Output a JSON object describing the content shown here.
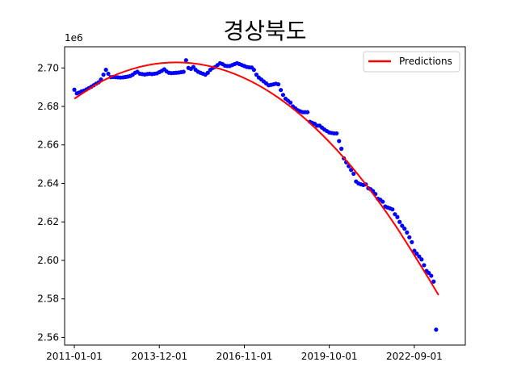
{
  "chart_data": {
    "type": "scatter",
    "title": "경상북도",
    "xlabel": "",
    "ylabel": "",
    "y_offset_label": "1e6",
    "legend": {
      "entries": [
        "Predictions"
      ],
      "placement": "top-right"
    },
    "x_ticks": [
      "2011-01-01",
      "2013-12-01",
      "2016-11-01",
      "2019-10-01",
      "2022-09-01"
    ],
    "y_ticks": [
      "2.56",
      "2.58",
      "2.60",
      "2.62",
      "2.64",
      "2.66",
      "2.68",
      "2.70"
    ],
    "ylim": [
      2.556,
      2.711
    ],
    "xlim": [
      "2010-09-01",
      "2024-06-01"
    ],
    "series": [
      {
        "kind": "scatter",
        "color": "#0000ff",
        "points": [
          [
            "2011-01-01",
            2.6887
          ],
          [
            "2011-02-01",
            2.6868
          ],
          [
            "2011-03-01",
            2.6872
          ],
          [
            "2011-04-01",
            2.6878
          ],
          [
            "2011-05-01",
            2.6882
          ],
          [
            "2011-06-01",
            2.6888
          ],
          [
            "2011-07-01",
            2.6895
          ],
          [
            "2011-08-01",
            2.6902
          ],
          [
            "2011-09-01",
            2.691
          ],
          [
            "2011-10-01",
            2.6918
          ],
          [
            "2011-11-01",
            2.6925
          ],
          [
            "2011-12-01",
            2.694
          ],
          [
            "2012-01-01",
            2.6965
          ],
          [
            "2012-02-01",
            2.699
          ],
          [
            "2012-03-01",
            2.697
          ],
          [
            "2012-04-01",
            2.6952
          ],
          [
            "2012-05-01",
            2.6953
          ],
          [
            "2012-06-01",
            2.6952
          ],
          [
            "2012-07-01",
            2.6951
          ],
          [
            "2012-08-01",
            2.695
          ],
          [
            "2012-09-01",
            2.6951
          ],
          [
            "2012-10-01",
            2.6953
          ],
          [
            "2012-11-01",
            2.6955
          ],
          [
            "2012-12-01",
            2.6958
          ],
          [
            "2013-01-01",
            2.6965
          ],
          [
            "2013-02-01",
            2.6975
          ],
          [
            "2013-03-01",
            2.698
          ],
          [
            "2013-04-01",
            2.697
          ],
          [
            "2013-05-01",
            2.6968
          ],
          [
            "2013-06-01",
            2.6966
          ],
          [
            "2013-07-01",
            2.6968
          ],
          [
            "2013-08-01",
            2.697
          ],
          [
            "2013-09-01",
            2.6968
          ],
          [
            "2013-10-01",
            2.697
          ],
          [
            "2013-11-01",
            2.6972
          ],
          [
            "2013-12-01",
            2.6978
          ],
          [
            "2014-01-01",
            2.6985
          ],
          [
            "2014-02-01",
            2.6993
          ],
          [
            "2014-03-01",
            2.6982
          ],
          [
            "2014-04-01",
            2.6975
          ],
          [
            "2014-05-01",
            2.6973
          ],
          [
            "2014-06-01",
            2.6974
          ],
          [
            "2014-07-01",
            2.6975
          ],
          [
            "2014-08-01",
            2.6976
          ],
          [
            "2014-09-01",
            2.6978
          ],
          [
            "2014-10-01",
            2.698
          ],
          [
            "2014-11-01",
            2.704
          ],
          [
            "2014-12-01",
            2.7
          ],
          [
            "2015-01-01",
            2.6995
          ],
          [
            "2015-02-01",
            2.7005
          ],
          [
            "2015-03-01",
            2.699
          ],
          [
            "2015-04-01",
            2.698
          ],
          [
            "2015-05-01",
            2.6975
          ],
          [
            "2015-06-01",
            2.697
          ],
          [
            "2015-07-01",
            2.6965
          ],
          [
            "2015-08-01",
            2.6975
          ],
          [
            "2015-09-01",
            2.699
          ],
          [
            "2015-10-01",
            2.7
          ],
          [
            "2015-11-01",
            2.7005
          ],
          [
            "2015-12-01",
            2.7015
          ],
          [
            "2016-01-01",
            2.7025
          ],
          [
            "2016-02-01",
            2.702
          ],
          [
            "2016-03-01",
            2.7012
          ],
          [
            "2016-04-01",
            2.701
          ],
          [
            "2016-05-01",
            2.701
          ],
          [
            "2016-06-01",
            2.7015
          ],
          [
            "2016-07-01",
            2.702
          ],
          [
            "2016-08-01",
            2.7025
          ],
          [
            "2016-09-01",
            2.702
          ],
          [
            "2016-10-01",
            2.7015
          ],
          [
            "2016-11-01",
            2.701
          ],
          [
            "2016-12-01",
            2.7005
          ],
          [
            "2017-01-01",
            2.7003
          ],
          [
            "2017-02-01",
            2.7002
          ],
          [
            "2017-03-01",
            2.699
          ],
          [
            "2017-04-01",
            2.6965
          ],
          [
            "2017-05-01",
            2.695
          ],
          [
            "2017-06-01",
            2.694
          ],
          [
            "2017-07-01",
            2.693
          ],
          [
            "2017-08-01",
            2.692
          ],
          [
            "2017-09-01",
            2.691
          ],
          [
            "2017-10-01",
            2.6912
          ],
          [
            "2017-11-01",
            2.6915
          ],
          [
            "2017-12-01",
            2.6918
          ],
          [
            "2018-01-01",
            2.6915
          ],
          [
            "2018-02-01",
            2.6885
          ],
          [
            "2018-03-01",
            2.686
          ],
          [
            "2018-04-01",
            2.684
          ],
          [
            "2018-05-01",
            2.683
          ],
          [
            "2018-06-01",
            2.682
          ],
          [
            "2018-07-01",
            2.68
          ],
          [
            "2018-08-01",
            2.679
          ],
          [
            "2018-09-01",
            2.678
          ],
          [
            "2018-10-01",
            2.6775
          ],
          [
            "2018-11-01",
            2.677
          ],
          [
            "2018-12-01",
            2.677
          ],
          [
            "2019-01-01",
            2.677
          ],
          [
            "2019-02-01",
            2.672
          ],
          [
            "2019-03-01",
            2.6715
          ],
          [
            "2019-04-01",
            2.671
          ],
          [
            "2019-05-01",
            2.67
          ],
          [
            "2019-06-01",
            2.67
          ],
          [
            "2019-07-01",
            2.669
          ],
          [
            "2019-08-01",
            2.668
          ],
          [
            "2019-09-01",
            2.6672
          ],
          [
            "2019-10-01",
            2.6665
          ],
          [
            "2019-11-01",
            2.6662
          ],
          [
            "2019-12-01",
            2.666
          ],
          [
            "2020-01-01",
            2.666
          ],
          [
            "2020-02-01",
            2.662
          ],
          [
            "2020-03-01",
            2.658
          ],
          [
            "2020-04-01",
            2.653
          ],
          [
            "2020-05-01",
            2.651
          ],
          [
            "2020-06-01",
            2.649
          ],
          [
            "2020-07-01",
            2.647
          ],
          [
            "2020-08-01",
            2.645
          ],
          [
            "2020-09-01",
            2.641
          ],
          [
            "2020-10-01",
            2.64
          ],
          [
            "2020-11-01",
            2.6395
          ],
          [
            "2020-12-01",
            2.6392
          ],
          [
            "2021-01-01",
            2.6395
          ],
          [
            "2021-02-01",
            2.6375
          ],
          [
            "2021-03-01",
            2.637
          ],
          [
            "2021-04-01",
            2.636
          ],
          [
            "2021-05-01",
            2.6345
          ],
          [
            "2021-06-01",
            2.632
          ],
          [
            "2021-07-01",
            2.6315
          ],
          [
            "2021-08-01",
            2.6305
          ],
          [
            "2021-09-01",
            2.628
          ],
          [
            "2021-10-01",
            2.6275
          ],
          [
            "2021-11-01",
            2.627
          ],
          [
            "2021-12-01",
            2.6265
          ],
          [
            "2022-01-01",
            2.624
          ],
          [
            "2022-02-01",
            2.6225
          ],
          [
            "2022-03-01",
            2.62
          ],
          [
            "2022-04-01",
            2.618
          ],
          [
            "2022-05-01",
            2.6165
          ],
          [
            "2022-06-01",
            2.6145
          ],
          [
            "2022-07-01",
            2.612
          ],
          [
            "2022-08-01",
            2.6095
          ],
          [
            "2022-09-01",
            2.605
          ],
          [
            "2022-10-01",
            2.6035
          ],
          [
            "2022-11-01",
            2.602
          ],
          [
            "2022-12-01",
            2.6005
          ],
          [
            "2023-01-01",
            2.5975
          ],
          [
            "2023-02-01",
            2.5945
          ],
          [
            "2023-03-01",
            2.5935
          ],
          [
            "2023-04-01",
            2.592
          ],
          [
            "2023-05-01",
            2.589
          ],
          [
            "2023-06-01",
            2.564
          ]
        ]
      },
      {
        "kind": "line",
        "name": "Predictions",
        "color": "#ff0000",
        "points": [
          [
            "2011-01-01",
            2.684
          ],
          [
            "2012-01-01",
            2.6935
          ],
          [
            "2013-01-01",
            2.6995
          ],
          [
            "2014-01-01",
            2.7025
          ],
          [
            "2015-01-01",
            2.7025
          ],
          [
            "2016-01-01",
            2.6995
          ],
          [
            "2017-01-01",
            2.6935
          ],
          [
            "2018-01-01",
            2.6845
          ],
          [
            "2019-01-01",
            2.6725
          ],
          [
            "2020-01-01",
            2.6575
          ],
          [
            "2021-01-01",
            2.6395
          ],
          [
            "2022-01-01",
            2.6185
          ],
          [
            "2023-01-01",
            2.5945
          ],
          [
            "2023-07-01",
            2.582
          ]
        ]
      }
    ]
  }
}
